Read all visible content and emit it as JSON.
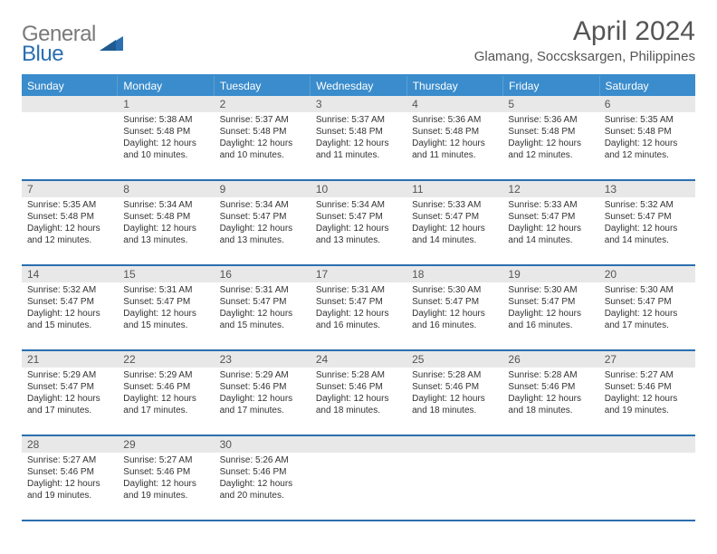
{
  "logo": {
    "word1": "General",
    "word2": "Blue"
  },
  "title": "April 2024",
  "subtitle": "Glamang, Soccsksargen, Philippines",
  "colors": {
    "header_bg": "#3a8ccc",
    "header_text": "#ffffff",
    "rule": "#2b6fb0",
    "daynum_bg": "#e8e8e8",
    "text": "#333333"
  },
  "day_names": [
    "Sunday",
    "Monday",
    "Tuesday",
    "Wednesday",
    "Thursday",
    "Friday",
    "Saturday"
  ],
  "weeks": [
    [
      {
        "n": "",
        "lines": []
      },
      {
        "n": "1",
        "lines": [
          "Sunrise: 5:38 AM",
          "Sunset: 5:48 PM",
          "Daylight: 12 hours and 10 minutes."
        ]
      },
      {
        "n": "2",
        "lines": [
          "Sunrise: 5:37 AM",
          "Sunset: 5:48 PM",
          "Daylight: 12 hours and 10 minutes."
        ]
      },
      {
        "n": "3",
        "lines": [
          "Sunrise: 5:37 AM",
          "Sunset: 5:48 PM",
          "Daylight: 12 hours and 11 minutes."
        ]
      },
      {
        "n": "4",
        "lines": [
          "Sunrise: 5:36 AM",
          "Sunset: 5:48 PM",
          "Daylight: 12 hours and 11 minutes."
        ]
      },
      {
        "n": "5",
        "lines": [
          "Sunrise: 5:36 AM",
          "Sunset: 5:48 PM",
          "Daylight: 12 hours and 12 minutes."
        ]
      },
      {
        "n": "6",
        "lines": [
          "Sunrise: 5:35 AM",
          "Sunset: 5:48 PM",
          "Daylight: 12 hours and 12 minutes."
        ]
      }
    ],
    [
      {
        "n": "7",
        "lines": [
          "Sunrise: 5:35 AM",
          "Sunset: 5:48 PM",
          "Daylight: 12 hours and 12 minutes."
        ]
      },
      {
        "n": "8",
        "lines": [
          "Sunrise: 5:34 AM",
          "Sunset: 5:48 PM",
          "Daylight: 12 hours and 13 minutes."
        ]
      },
      {
        "n": "9",
        "lines": [
          "Sunrise: 5:34 AM",
          "Sunset: 5:47 PM",
          "Daylight: 12 hours and 13 minutes."
        ]
      },
      {
        "n": "10",
        "lines": [
          "Sunrise: 5:34 AM",
          "Sunset: 5:47 PM",
          "Daylight: 12 hours and 13 minutes."
        ]
      },
      {
        "n": "11",
        "lines": [
          "Sunrise: 5:33 AM",
          "Sunset: 5:47 PM",
          "Daylight: 12 hours and 14 minutes."
        ]
      },
      {
        "n": "12",
        "lines": [
          "Sunrise: 5:33 AM",
          "Sunset: 5:47 PM",
          "Daylight: 12 hours and 14 minutes."
        ]
      },
      {
        "n": "13",
        "lines": [
          "Sunrise: 5:32 AM",
          "Sunset: 5:47 PM",
          "Daylight: 12 hours and 14 minutes."
        ]
      }
    ],
    [
      {
        "n": "14",
        "lines": [
          "Sunrise: 5:32 AM",
          "Sunset: 5:47 PM",
          "Daylight: 12 hours and 15 minutes."
        ]
      },
      {
        "n": "15",
        "lines": [
          "Sunrise: 5:31 AM",
          "Sunset: 5:47 PM",
          "Daylight: 12 hours and 15 minutes."
        ]
      },
      {
        "n": "16",
        "lines": [
          "Sunrise: 5:31 AM",
          "Sunset: 5:47 PM",
          "Daylight: 12 hours and 15 minutes."
        ]
      },
      {
        "n": "17",
        "lines": [
          "Sunrise: 5:31 AM",
          "Sunset: 5:47 PM",
          "Daylight: 12 hours and 16 minutes."
        ]
      },
      {
        "n": "18",
        "lines": [
          "Sunrise: 5:30 AM",
          "Sunset: 5:47 PM",
          "Daylight: 12 hours and 16 minutes."
        ]
      },
      {
        "n": "19",
        "lines": [
          "Sunrise: 5:30 AM",
          "Sunset: 5:47 PM",
          "Daylight: 12 hours and 16 minutes."
        ]
      },
      {
        "n": "20",
        "lines": [
          "Sunrise: 5:30 AM",
          "Sunset: 5:47 PM",
          "Daylight: 12 hours and 17 minutes."
        ]
      }
    ],
    [
      {
        "n": "21",
        "lines": [
          "Sunrise: 5:29 AM",
          "Sunset: 5:47 PM",
          "Daylight: 12 hours and 17 minutes."
        ]
      },
      {
        "n": "22",
        "lines": [
          "Sunrise: 5:29 AM",
          "Sunset: 5:46 PM",
          "Daylight: 12 hours and 17 minutes."
        ]
      },
      {
        "n": "23",
        "lines": [
          "Sunrise: 5:29 AM",
          "Sunset: 5:46 PM",
          "Daylight: 12 hours and 17 minutes."
        ]
      },
      {
        "n": "24",
        "lines": [
          "Sunrise: 5:28 AM",
          "Sunset: 5:46 PM",
          "Daylight: 12 hours and 18 minutes."
        ]
      },
      {
        "n": "25",
        "lines": [
          "Sunrise: 5:28 AM",
          "Sunset: 5:46 PM",
          "Daylight: 12 hours and 18 minutes."
        ]
      },
      {
        "n": "26",
        "lines": [
          "Sunrise: 5:28 AM",
          "Sunset: 5:46 PM",
          "Daylight: 12 hours and 18 minutes."
        ]
      },
      {
        "n": "27",
        "lines": [
          "Sunrise: 5:27 AM",
          "Sunset: 5:46 PM",
          "Daylight: 12 hours and 19 minutes."
        ]
      }
    ],
    [
      {
        "n": "28",
        "lines": [
          "Sunrise: 5:27 AM",
          "Sunset: 5:46 PM",
          "Daylight: 12 hours and 19 minutes."
        ]
      },
      {
        "n": "29",
        "lines": [
          "Sunrise: 5:27 AM",
          "Sunset: 5:46 PM",
          "Daylight: 12 hours and 19 minutes."
        ]
      },
      {
        "n": "30",
        "lines": [
          "Sunrise: 5:26 AM",
          "Sunset: 5:46 PM",
          "Daylight: 12 hours and 20 minutes."
        ]
      },
      {
        "n": "",
        "lines": []
      },
      {
        "n": "",
        "lines": []
      },
      {
        "n": "",
        "lines": []
      },
      {
        "n": "",
        "lines": []
      }
    ]
  ]
}
